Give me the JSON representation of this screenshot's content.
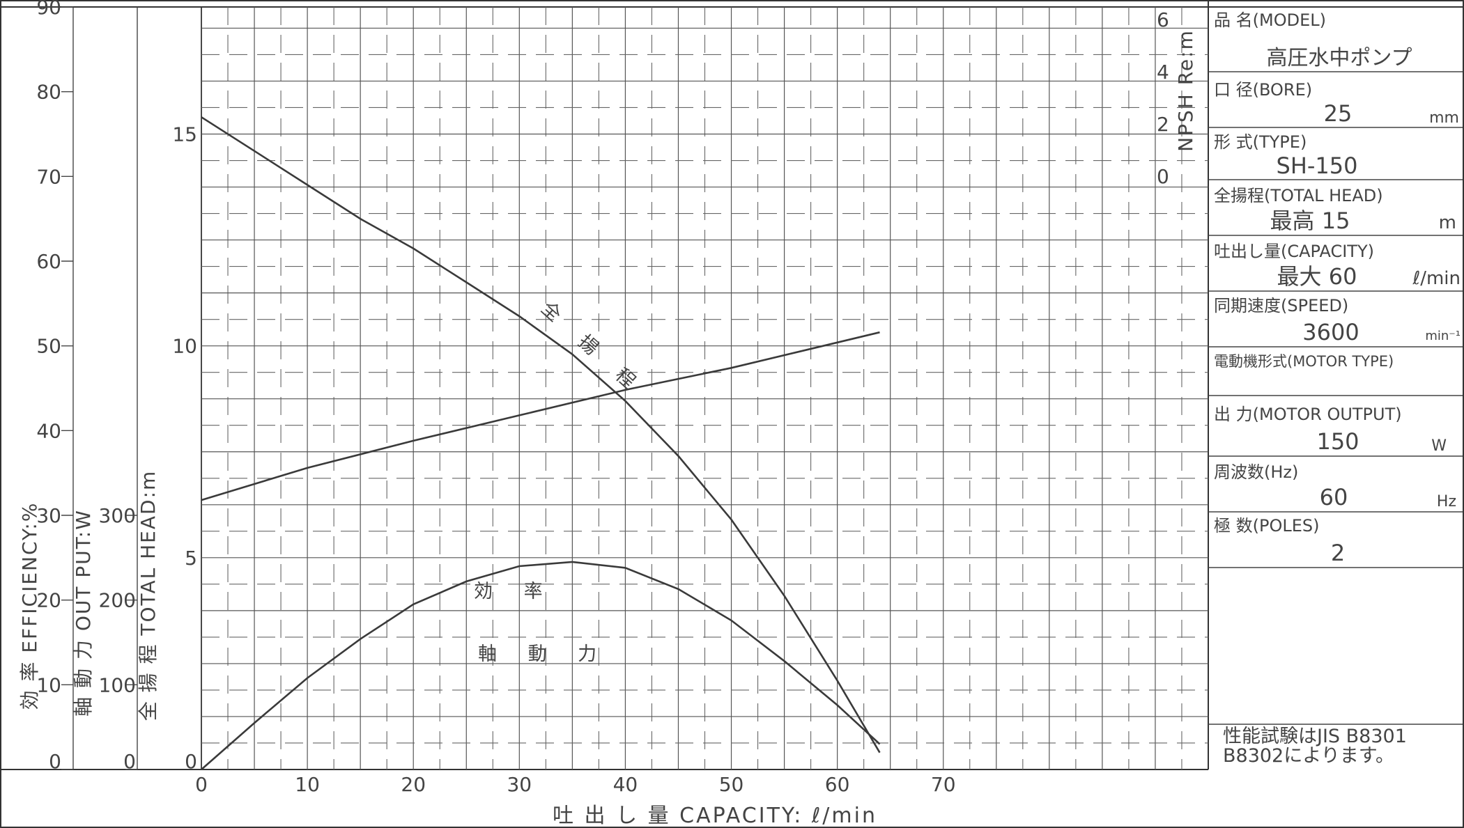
{
  "chart_data": {
    "type": "line",
    "xlabel": "吐 出 し 量  CAPACITY: ℓ/min",
    "x_ticks": [
      "0",
      "10",
      "20",
      "30",
      "40",
      "50",
      "60",
      "70"
    ],
    "xlim": [
      0,
      95
    ],
    "axes": {
      "head": {
        "label": "全 揚 程 TOTAL HEAD:m",
        "ticks": [
          "0",
          "5",
          "10",
          "15"
        ],
        "range": [
          0,
          18
        ]
      },
      "output": {
        "label": "軸 動 力 OUT PUT:W",
        "ticks": [
          "0",
          "100",
          "200",
          "300"
        ],
        "range": [
          0,
          900
        ]
      },
      "efficiency": {
        "label": "効 率 EFFICIENCY:%",
        "ticks": [
          "0",
          "10",
          "20",
          "30",
          "40",
          "50",
          "60",
          "70",
          "80",
          "90"
        ],
        "range": [
          0,
          90
        ]
      },
      "npsh": {
        "label": "NPSH Re:m",
        "ticks": [
          "0",
          "2",
          "4",
          "6"
        ],
        "range": [
          0,
          6
        ]
      }
    },
    "series": [
      {
        "name": "全 揚 程",
        "axis": "head",
        "x": [
          0,
          5,
          10,
          15,
          20,
          25,
          30,
          35,
          40,
          45,
          50,
          55,
          60,
          64
        ],
        "y": [
          15.4,
          14.6,
          13.8,
          13.0,
          12.3,
          11.5,
          10.7,
          9.8,
          8.7,
          7.4,
          5.9,
          4.1,
          2.1,
          0.4
        ]
      },
      {
        "name": "効 率",
        "axis": "efficiency",
        "x": [
          0,
          5,
          10,
          15,
          20,
          25,
          30,
          35,
          40,
          45,
          50,
          55,
          60,
          64
        ],
        "y": [
          0,
          5.5,
          10.8,
          15.4,
          19.5,
          22.2,
          24.0,
          24.5,
          23.8,
          21.3,
          17.6,
          12.8,
          7.6,
          3.0
        ]
      },
      {
        "name": "軸 動 力",
        "axis": "output",
        "x": [
          0,
          10,
          20,
          30,
          40,
          50,
          60,
          64
        ],
        "y": [
          318,
          356,
          388,
          418,
          448,
          474,
          504,
          516
        ]
      }
    ]
  },
  "panel": {
    "model_label": "品 名(MODEL)",
    "model_value": "高圧水中ポンプ",
    "bore_label": "口 径(BORE)",
    "bore_value": "25",
    "bore_unit": "mm",
    "type_label": "形 式(TYPE)",
    "type_value": "SH-150",
    "head_label": "全揚程(TOTAL HEAD)",
    "head_value": "最高 15",
    "head_unit": "m",
    "capacity_label": "吐出し量(CAPACITY)",
    "capacity_value": "最大 60",
    "capacity_unit": "ℓ/min",
    "speed_label": "同期速度(SPEED)",
    "speed_value": "3600",
    "speed_unit": "min⁻¹",
    "motor_type_label": "電動機形式(MOTOR TYPE)",
    "output_label": "出 力(MOTOR OUTPUT)",
    "output_value": "150",
    "output_unit": "W",
    "freq_label": "周波数(Hz)",
    "freq_value": "60",
    "freq_unit": "Hz",
    "poles_label": "極 数(POLES)",
    "poles_value": "2",
    "note_line1": "性能試験はJIS B8301",
    "note_line2": "B8302によります。"
  }
}
